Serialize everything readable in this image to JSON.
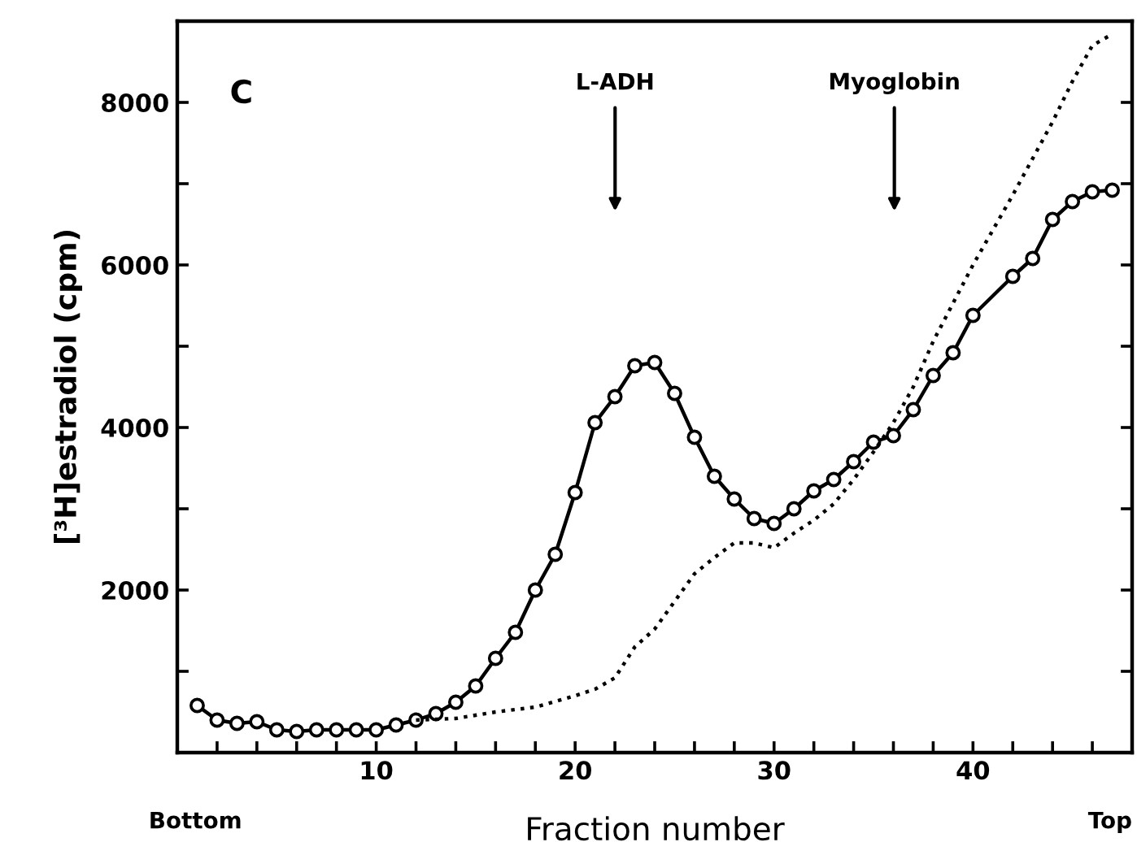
{
  "chart_data": {
    "type": "line",
    "xlabel": "Fraction number",
    "ylabel": "[³H]estradiol (cpm)",
    "xlim": [
      0,
      48
    ],
    "ylim": [
      0,
      9000
    ],
    "xticks": [
      {
        "value": 2,
        "label": null
      },
      {
        "value": 4,
        "label": null
      },
      {
        "value": 6,
        "label": null
      },
      {
        "value": 8,
        "label": null
      },
      10,
      {
        "value": 12,
        "label": null
      },
      {
        "value": 14,
        "label": null
      },
      {
        "value": 16,
        "label": null
      },
      {
        "value": 18,
        "label": null
      },
      20,
      {
        "value": 22,
        "label": null
      },
      {
        "value": 24,
        "label": null
      },
      {
        "value": 26,
        "label": null
      },
      {
        "value": 28,
        "label": null
      },
      30,
      {
        "value": 32,
        "label": null
      },
      {
        "value": 34,
        "label": null
      },
      {
        "value": 36,
        "label": null
      },
      {
        "value": 38,
        "label": null
      },
      40,
      {
        "value": 42,
        "label": null
      },
      {
        "value": 44,
        "label": null
      },
      {
        "value": 46,
        "label": null
      }
    ],
    "yticks": [
      {
        "value": 0,
        "label": null
      },
      {
        "value": 1000,
        "label": null
      },
      2000,
      {
        "value": 3000,
        "label": null
      },
      4000,
      {
        "value": 5000,
        "label": null
      },
      6000,
      {
        "value": 7000,
        "label": null
      },
      8000
    ],
    "grid": false,
    "legend": false,
    "series": [
      {
        "color": "#000000",
        "marker": "circle",
        "line_style": "solid",
        "x": [
          1,
          2,
          3,
          4,
          5,
          6,
          7,
          8,
          9,
          10,
          11,
          12,
          13,
          14,
          15,
          16,
          17,
          18,
          19,
          20,
          21,
          22,
          23,
          24,
          25,
          26,
          27,
          28,
          29,
          30,
          31,
          32,
          33,
          34,
          35,
          36,
          37,
          38,
          39,
          40,
          42,
          43,
          44,
          45,
          46,
          47
        ],
        "values": [
          580,
          400,
          360,
          380,
          280,
          260,
          280,
          280,
          280,
          280,
          340,
          400,
          480,
          620,
          820,
          1160,
          1480,
          2000,
          2440,
          3200,
          4060,
          4380,
          4760,
          4800,
          4420,
          3880,
          3400,
          3120,
          2880,
          2820,
          3000,
          3220,
          3360,
          3580,
          3820,
          3900,
          4220,
          4640,
          4920,
          5380,
          5860,
          6080,
          6560,
          6780,
          6900,
          6920
        ]
      },
      {
        "color": "#000000",
        "marker": "none",
        "line_style": "dotted",
        "x": [
          12,
          14,
          16,
          18,
          20,
          21,
          22,
          23,
          24,
          25,
          26,
          27,
          28,
          29,
          30,
          31,
          32,
          33,
          34,
          35,
          36,
          37,
          38,
          40,
          42,
          44,
          45,
          46,
          47
        ],
        "values": [
          400,
          420,
          500,
          560,
          700,
          780,
          920,
          1300,
          1520,
          1860,
          2200,
          2400,
          2580,
          2580,
          2520,
          2700,
          2860,
          3060,
          3360,
          3700,
          4060,
          4500,
          5060,
          6000,
          6860,
          7760,
          8260,
          8700,
          8840
        ]
      }
    ],
    "annotations": [
      "C",
      "Bottom",
      "Top",
      "L-ADH",
      "Myoglobin"
    ]
  }
}
